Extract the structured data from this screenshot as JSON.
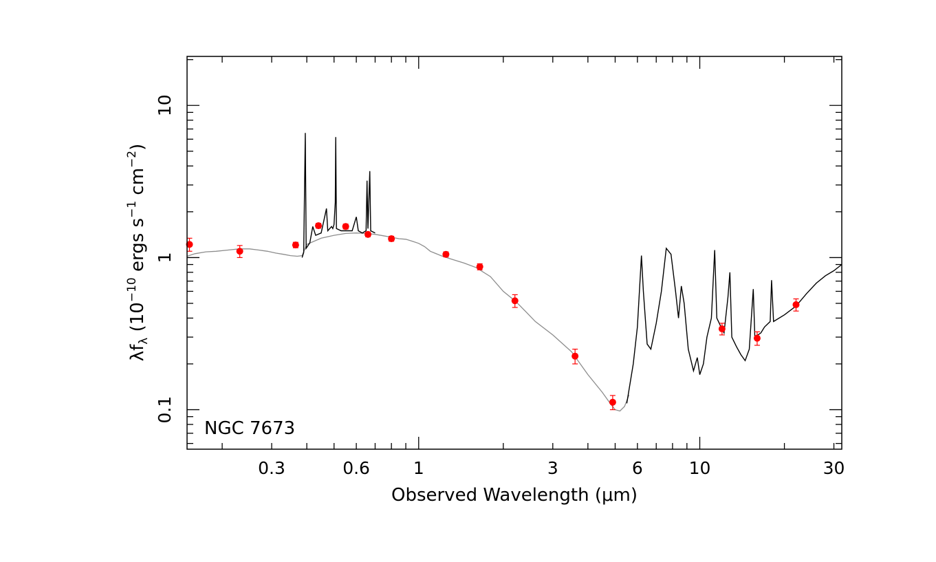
{
  "chart_data": {
    "type": "line",
    "annotation": "NGC 7673",
    "xlabel": "Observed Wavelength (μm)",
    "ylabel_parts": [
      "λf",
      "λ",
      " (10",
      "−10",
      " ergs s",
      "−1",
      " cm",
      "−2",
      ")"
    ],
    "x_scale": "log",
    "y_scale": "log",
    "xlim": [
      0.15,
      32
    ],
    "ylim": [
      0.055,
      21
    ],
    "x_ticks": [
      {
        "value": 0.3,
        "label": "0.3"
      },
      {
        "value": 0.6,
        "label": "0.6"
      },
      {
        "value": 1,
        "label": "1"
      },
      {
        "value": 3,
        "label": "3"
      },
      {
        "value": 6,
        "label": "6"
      },
      {
        "value": 10,
        "label": "10"
      },
      {
        "value": 30,
        "label": "30"
      }
    ],
    "y_ticks": [
      {
        "value": 0.1,
        "label": "0.1"
      },
      {
        "value": 1,
        "label": "1"
      },
      {
        "value": 10,
        "label": "10"
      }
    ],
    "grid": false,
    "colors": {
      "model": "#8c8c8c",
      "spectrum": "#000000",
      "photometry": "#ff0000"
    },
    "series": [
      {
        "role": "model",
        "points": [
          [
            0.15,
            1.02
          ],
          [
            0.16,
            1.06
          ],
          [
            0.175,
            1.09
          ],
          [
            0.19,
            1.1
          ],
          [
            0.21,
            1.12
          ],
          [
            0.23,
            1.14
          ],
          [
            0.25,
            1.14
          ],
          [
            0.27,
            1.12
          ],
          [
            0.29,
            1.1
          ],
          [
            0.31,
            1.07
          ],
          [
            0.33,
            1.05
          ],
          [
            0.35,
            1.03
          ],
          [
            0.37,
            1.02
          ],
          [
            0.385,
            1.03
          ],
          [
            0.4,
            1.22
          ],
          [
            0.45,
            1.34
          ],
          [
            0.5,
            1.4
          ],
          [
            0.55,
            1.44
          ],
          [
            0.6,
            1.45
          ],
          [
            0.65,
            1.44
          ],
          [
            0.7,
            1.42
          ],
          [
            0.75,
            1.39
          ],
          [
            0.8,
            1.36
          ],
          [
            0.85,
            1.33
          ],
          [
            0.9,
            1.32
          ],
          [
            0.95,
            1.28
          ],
          [
            1.0,
            1.24
          ],
          [
            1.05,
            1.18
          ],
          [
            1.1,
            1.1
          ],
          [
            1.2,
            1.03
          ],
          [
            1.3,
            0.98
          ],
          [
            1.45,
            0.92
          ],
          [
            1.6,
            0.86
          ],
          [
            1.8,
            0.75
          ],
          [
            2.0,
            0.6
          ],
          [
            2.2,
            0.52
          ],
          [
            2.3,
            0.48
          ],
          [
            2.6,
            0.38
          ],
          [
            3.0,
            0.31
          ],
          [
            3.5,
            0.24
          ],
          [
            4.0,
            0.17
          ],
          [
            4.5,
            0.13
          ],
          [
            4.8,
            0.11
          ],
          [
            5.0,
            0.1
          ],
          [
            5.2,
            0.098
          ],
          [
            5.4,
            0.105
          ],
          [
            5.6,
            0.125
          ]
        ]
      },
      {
        "role": "spectrum",
        "segments": [
          [
            [
              0.385,
              1.0
            ],
            [
              0.39,
              1.08
            ],
            [
              0.395,
              6.6
            ],
            [
              0.398,
              1.15
            ],
            [
              0.41,
              1.25
            ],
            [
              0.42,
              1.6
            ],
            [
              0.43,
              1.4
            ],
            [
              0.45,
              1.45
            ],
            [
              0.47,
              2.1
            ],
            [
              0.475,
              1.5
            ],
            [
              0.49,
              1.6
            ],
            [
              0.495,
              1.55
            ],
            [
              0.5,
              1.65
            ],
            [
              0.505,
              2.3
            ],
            [
              0.507,
              6.2
            ],
            [
              0.51,
              1.55
            ],
            [
              0.53,
              1.5
            ],
            [
              0.55,
              1.5
            ],
            [
              0.58,
              1.5
            ],
            [
              0.6,
              1.85
            ],
            [
              0.61,
              1.5
            ],
            [
              0.63,
              1.45
            ],
            [
              0.65,
              1.5
            ],
            [
              0.655,
              3.2
            ],
            [
              0.66,
              1.55
            ],
            [
              0.67,
              3.7
            ],
            [
              0.675,
              1.5
            ],
            [
              0.7,
              1.45
            ]
          ],
          [
            [
              5.5,
              0.11
            ],
            [
              5.8,
              0.2
            ],
            [
              6.0,
              0.35
            ],
            [
              6.2,
              1.03
            ],
            [
              6.3,
              0.6
            ],
            [
              6.5,
              0.27
            ],
            [
              6.7,
              0.25
            ],
            [
              7.0,
              0.37
            ],
            [
              7.3,
              0.6
            ],
            [
              7.6,
              1.15
            ],
            [
              7.9,
              1.05
            ],
            [
              8.2,
              0.6
            ],
            [
              8.4,
              0.4
            ],
            [
              8.6,
              0.65
            ],
            [
              8.8,
              0.5
            ],
            [
              9.1,
              0.25
            ],
            [
              9.5,
              0.18
            ],
            [
              9.8,
              0.22
            ],
            [
              10.0,
              0.17
            ],
            [
              10.3,
              0.2
            ],
            [
              10.6,
              0.3
            ],
            [
              11.0,
              0.4
            ],
            [
              11.3,
              1.12
            ],
            [
              11.5,
              0.4
            ],
            [
              11.9,
              0.35
            ],
            [
              12.2,
              0.32
            ],
            [
              12.6,
              0.55
            ],
            [
              12.8,
              0.8
            ],
            [
              13.0,
              0.3
            ],
            [
              13.5,
              0.26
            ],
            [
              14.0,
              0.23
            ],
            [
              14.5,
              0.21
            ],
            [
              15.0,
              0.25
            ],
            [
              15.5,
              0.62
            ],
            [
              15.7,
              0.3
            ],
            [
              16.5,
              0.32
            ],
            [
              17.0,
              0.35
            ],
            [
              17.8,
              0.38
            ],
            [
              18.0,
              0.71
            ],
            [
              18.3,
              0.38
            ],
            [
              20.0,
              0.42
            ],
            [
              22.0,
              0.48
            ],
            [
              24.0,
              0.58
            ],
            [
              26.0,
              0.68
            ],
            [
              28.0,
              0.76
            ],
            [
              30.0,
              0.82
            ],
            [
              32.0,
              0.9
            ]
          ]
        ]
      },
      {
        "role": "photometry",
        "points": [
          {
            "x": 0.153,
            "y": 1.22,
            "err": 0.12
          },
          {
            "x": 0.231,
            "y": 1.1,
            "err": 0.1
          },
          {
            "x": 0.365,
            "y": 1.21,
            "err": 0.05
          },
          {
            "x": 0.44,
            "y": 1.62,
            "err": 0.06
          },
          {
            "x": 0.55,
            "y": 1.6,
            "err": 0.06
          },
          {
            "x": 0.66,
            "y": 1.42,
            "err": 0.05
          },
          {
            "x": 0.8,
            "y": 1.33,
            "err": 0.05
          },
          {
            "x": 1.25,
            "y": 1.05,
            "err": 0.04
          },
          {
            "x": 1.65,
            "y": 0.87,
            "err": 0.04
          },
          {
            "x": 2.2,
            "y": 0.52,
            "err": 0.05
          },
          {
            "x": 3.6,
            "y": 0.225,
            "err": 0.025
          },
          {
            "x": 4.9,
            "y": 0.112,
            "err": 0.012
          },
          {
            "x": 12.0,
            "y": 0.34,
            "err": 0.03
          },
          {
            "x": 16.0,
            "y": 0.295,
            "err": 0.03
          },
          {
            "x": 22.0,
            "y": 0.49,
            "err": 0.045
          }
        ]
      }
    ]
  }
}
